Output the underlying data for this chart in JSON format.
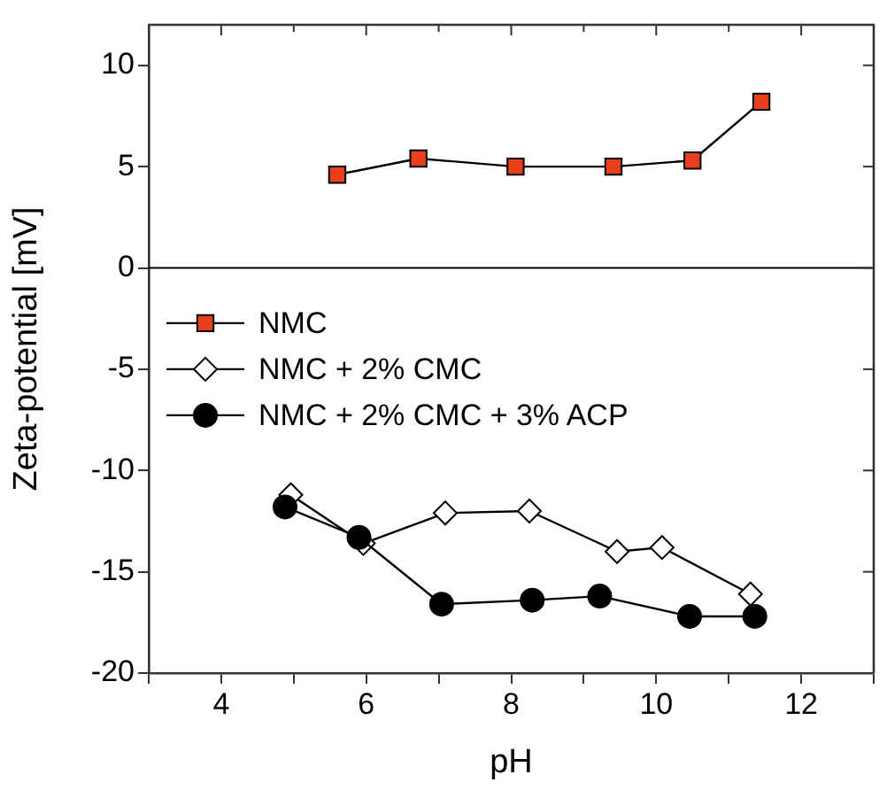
{
  "chart_data": {
    "type": "line",
    "xlabel": "pH",
    "ylabel": "Zeta-potential [mV]",
    "xlim": [
      3,
      13
    ],
    "xticks": [
      {
        "value": 3,
        "label": null
      },
      4,
      {
        "value": 5,
        "label": null
      },
      6,
      {
        "value": 7,
        "label": null
      },
      8,
      {
        "value": 9,
        "label": null
      },
      10,
      {
        "value": 11,
        "label": null
      },
      12,
      {
        "value": 13,
        "label": null
      }
    ],
    "ylim": [
      -20,
      12
    ],
    "yticks": [
      -20,
      -15,
      -10,
      -5,
      0,
      5,
      10
    ],
    "grid": false,
    "legend": "center left",
    "line_style": "solid",
    "ref_lines": [
      {
        "axis": "y",
        "value": 0,
        "color": "#000000"
      }
    ],
    "series": [
      {
        "name": "NMC",
        "color": "#e8401c",
        "marker": "square",
        "x": [
          5.6,
          6.72,
          8.06,
          9.41,
          10.5,
          11.45
        ],
        "values": [
          4.6,
          5.4,
          5.0,
          5.0,
          5.3,
          8.2
        ]
      },
      {
        "name": "NMC + 2% CMC",
        "color": "#ffffff",
        "marker": "diamond",
        "x": [
          4.96,
          5.96,
          7.09,
          8.25,
          9.46,
          10.08,
          11.3
        ],
        "values": [
          -11.2,
          -13.6,
          -12.1,
          -12.0,
          -14.0,
          -13.8,
          -16.1
        ]
      },
      {
        "name": "NMC + 2% CMC + 3% ACP",
        "color": "#000000",
        "marker": "circle",
        "x": [
          4.88,
          5.9,
          7.04,
          8.29,
          9.22,
          10.46,
          11.36
        ],
        "values": [
          -11.8,
          -13.3,
          -16.6,
          -16.4,
          -16.2,
          -17.2,
          -17.2
        ]
      }
    ]
  }
}
